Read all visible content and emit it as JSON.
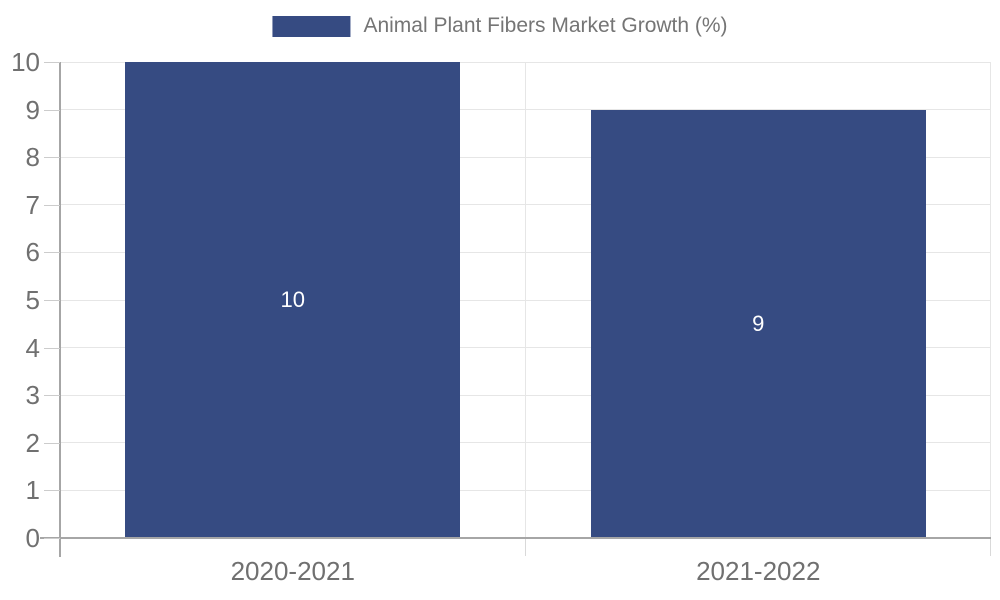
{
  "legend": {
    "label": "Animal Plant Fibers Market Growth (%)"
  },
  "chart_data": {
    "type": "bar",
    "title": "Animal Plant Fibers Market Growth (%)",
    "categories": [
      "2020-2021",
      "2021-2022"
    ],
    "values": [
      10,
      9
    ],
    "bar_labels": [
      "10",
      "9"
    ],
    "xlabel": "",
    "ylabel": "",
    "ylim": [
      0,
      10
    ],
    "yticks": [
      0,
      1,
      2,
      3,
      4,
      5,
      6,
      7,
      8,
      9,
      10
    ],
    "grid": true,
    "legend_position": "top-center",
    "bar_width_fraction": 0.72
  },
  "colors": {
    "bar": "#364b82",
    "bar_label_text": "#ffffff",
    "grid": "#e6e6e6",
    "axis_line": "#a6a6a6",
    "tick": "#cccccc",
    "axis_text": "#707070",
    "legend_text": "#757575",
    "background": "#ffffff"
  }
}
